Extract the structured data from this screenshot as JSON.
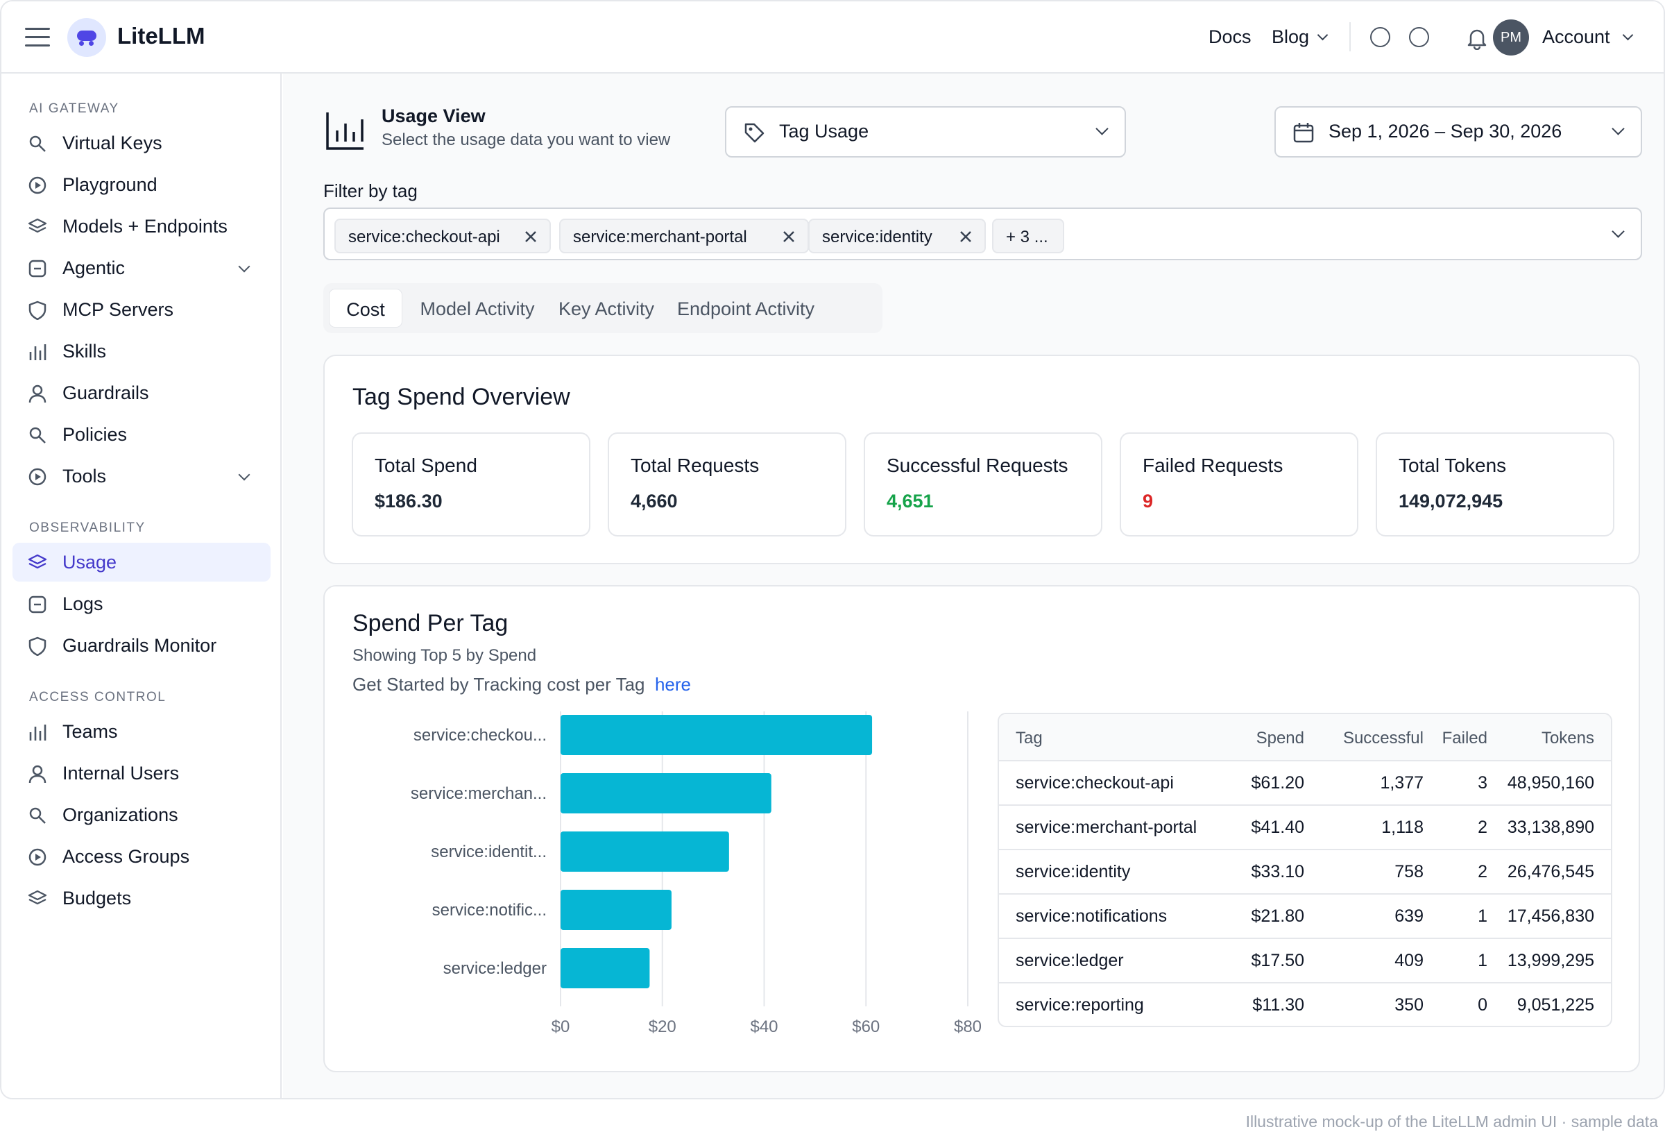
{
  "header": {
    "brand": "LiteLLM",
    "nav": {
      "docs": "Docs",
      "blog": "Blog",
      "account": "Account"
    },
    "avatar_initials": "PM"
  },
  "sidebar": {
    "sections": [
      {
        "title": "AI GATEWAY",
        "items": [
          {
            "label": "Virtual Keys",
            "icon": "search-icon"
          },
          {
            "label": "Playground",
            "icon": "play-circle-icon"
          },
          {
            "label": "Models + Endpoints",
            "icon": "layers-icon"
          },
          {
            "label": "Agentic",
            "icon": "square-minus-icon",
            "expandable": true
          },
          {
            "label": "MCP Servers",
            "icon": "shield-icon"
          },
          {
            "label": "Skills",
            "icon": "bar-chart-icon"
          },
          {
            "label": "Guardrails",
            "icon": "user-icon"
          },
          {
            "label": "Policies",
            "icon": "search-icon"
          },
          {
            "label": "Tools",
            "icon": "play-circle-icon",
            "expandable": true
          }
        ]
      },
      {
        "title": "OBSERVABILITY",
        "items": [
          {
            "label": "Usage",
            "icon": "layers-icon",
            "active": true
          },
          {
            "label": "Logs",
            "icon": "square-minus-icon"
          },
          {
            "label": "Guardrails Monitor",
            "icon": "shield-icon"
          }
        ]
      },
      {
        "title": "ACCESS CONTROL",
        "items": [
          {
            "label": "Teams",
            "icon": "bar-chart-icon"
          },
          {
            "label": "Internal Users",
            "icon": "user-icon"
          },
          {
            "label": "Organizations",
            "icon": "search-icon"
          },
          {
            "label": "Access Groups",
            "icon": "play-circle-icon"
          },
          {
            "label": "Budgets",
            "icon": "layers-icon"
          }
        ]
      }
    ]
  },
  "usage_view": {
    "title": "Usage View",
    "subtitle": "Select the usage data you want to view",
    "selected": "Tag Usage",
    "date_range": "Sep 1, 2026 – Sep 30, 2026"
  },
  "filter": {
    "label": "Filter by tag",
    "chips": [
      "service:checkout-api",
      "service:merchant-portal",
      "service:identity"
    ],
    "more": "+ 3 ..."
  },
  "tabs": [
    "Cost",
    "Model Activity",
    "Key Activity",
    "Endpoint Activity"
  ],
  "overview": {
    "title": "Tag Spend Overview",
    "stats": [
      {
        "label": "Total Spend",
        "value": "$186.30",
        "color": "#1f2937"
      },
      {
        "label": "Total Requests",
        "value": "4,660",
        "color": "#1f2937"
      },
      {
        "label": "Successful Requests",
        "value": "4,651",
        "color": "#16a34a"
      },
      {
        "label": "Failed Requests",
        "value": "9",
        "color": "#dc2626"
      },
      {
        "label": "Total Tokens",
        "value": "149,072,945",
        "color": "#1f2937"
      }
    ]
  },
  "spend_per_tag": {
    "title": "Spend Per Tag",
    "subtitle": "Showing Top 5 by Spend",
    "hint": "Get Started by Tracking cost per Tag",
    "hint_link": "here",
    "table": {
      "columns": [
        "Tag",
        "Spend",
        "Successful",
        "Failed",
        "Tokens"
      ],
      "rows": [
        [
          "service:checkout-api",
          "$61.20",
          "1,377",
          "3",
          "48,950,160"
        ],
        [
          "service:merchant-portal",
          "$41.40",
          "1,118",
          "2",
          "33,138,890"
        ],
        [
          "service:identity",
          "$33.10",
          "758",
          "2",
          "26,476,545"
        ],
        [
          "service:notifications",
          "$21.80",
          "639",
          "1",
          "17,456,830"
        ],
        [
          "service:ledger",
          "$17.50",
          "409",
          "1",
          "13,999,295"
        ],
        [
          "service:reporting",
          "$11.30",
          "350",
          "0",
          "9,051,225"
        ]
      ]
    }
  },
  "chart_data": {
    "type": "bar",
    "orientation": "horizontal",
    "categories": [
      "service:checkou...",
      "service:merchan...",
      "service:identit...",
      "service:notific...",
      "service:ledger"
    ],
    "values": [
      61.2,
      41.4,
      33.1,
      21.8,
      17.5
    ],
    "xlim": [
      0,
      80
    ],
    "x_ticks": [
      "$0",
      "$20",
      "$40",
      "$60",
      "$80"
    ],
    "color": "#06b6d4",
    "grid": true
  },
  "caption": "Illustrative mock-up of the LiteLLM admin UI · sample data"
}
